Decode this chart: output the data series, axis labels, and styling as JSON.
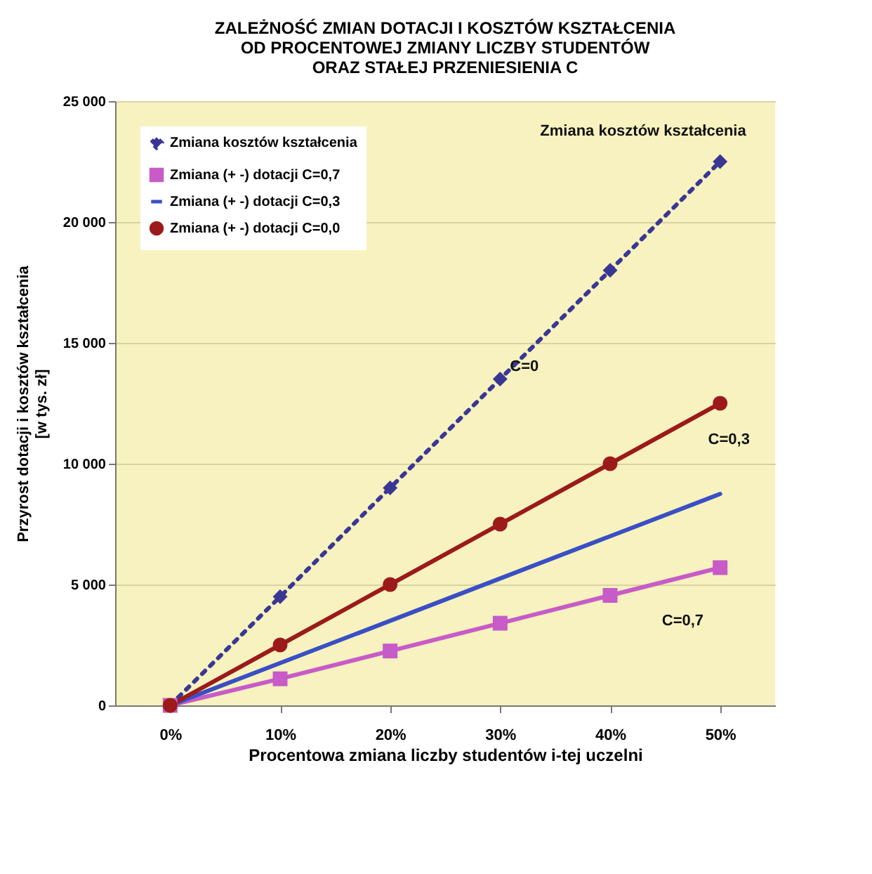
{
  "chart_data": {
    "type": "line",
    "title": "ZALEŻNOŚĆ ZMIAN DOTACJI I KOSZTÓW KSZTAŁCENIA\nOD PROCENTOWEJ ZMIANY LICZBY STUDENTÓW\nORAZ STAŁEJ PRZENIESIENIA C",
    "xlabel": "Procentowa zmiana liczby studentów i-tej uczelni",
    "ylabel": "Przyrost dotacji i kosztów kształcenia\n[w tys. zł]",
    "categories": [
      "0%",
      "10%",
      "20%",
      "30%",
      "40%",
      "50%"
    ],
    "series": [
      {
        "name": "Zmiana kosztów kształcenia",
        "color": "#3a3794",
        "values": [
          0,
          4500,
          9000,
          13500,
          18000,
          22500
        ],
        "marker": "diamond",
        "line_style": "dotted"
      },
      {
        "name": "Zmiana    (+ -) dotacji C=0,7",
        "color": "#c75bc7",
        "values": [
          0,
          1100,
          2250,
          3400,
          4550,
          5700
        ],
        "marker": "square",
        "line_style": "solid"
      },
      {
        "name": "Zmiana    (+ -) dotacji C=0,3",
        "color": "#3a4fc4",
        "values": [
          0,
          1750,
          3500,
          5250,
          7000,
          8750
        ],
        "marker": "none",
        "line_style": "solid"
      },
      {
        "name": "Zmiana    (+ -) dotacji C=0,0",
        "color": "#9c1a1a",
        "values": [
          0,
          2500,
          5000,
          7500,
          10000,
          12500
        ],
        "marker": "circle",
        "line_style": "solid"
      }
    ],
    "ylim": [
      0,
      25000
    ],
    "yticks": [
      {
        "value": 0,
        "label": "0"
      },
      {
        "value": 5000,
        "label": "5 000"
      },
      {
        "value": 10000,
        "label": "10 000"
      },
      {
        "value": 15000,
        "label": "15 000"
      },
      {
        "value": 20000,
        "label": "20 000"
      },
      {
        "value": 25000,
        "label": "25 000"
      }
    ],
    "grid": "y",
    "legend": "top left",
    "annotations": [
      "Zmiana kosztów kształcenia",
      "C=0",
      "C=0,3",
      "C=0,7"
    ]
  }
}
